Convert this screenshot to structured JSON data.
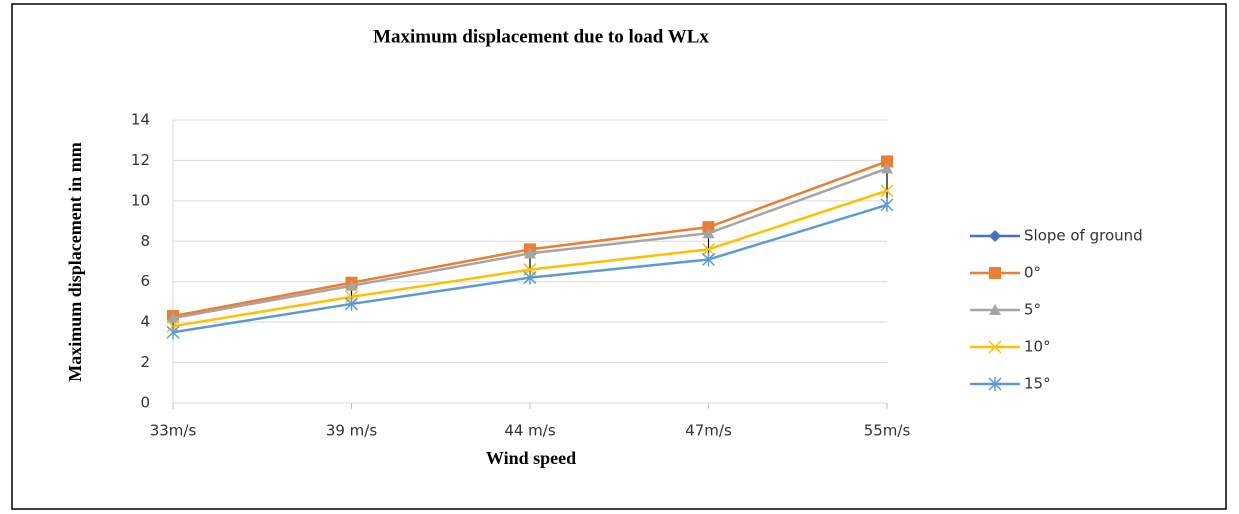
{
  "chart_data": {
    "type": "line",
    "title": "Maximum displacement due to load  WLx",
    "x_label": "Wind speed",
    "y_label": "Maximum displacement in mm",
    "categories": [
      "33m/s",
      "39 m/s",
      "44 m/s",
      "47m/s",
      "55m/s"
    ],
    "series": [
      {
        "name": "Slope of ground",
        "color": "#4472c4",
        "marker": "diamond",
        "values": [
          null,
          null,
          null,
          null,
          null
        ]
      },
      {
        "name": "0°",
        "color": "#ed7d31",
        "marker": "square",
        "values": [
          4.3,
          5.95,
          7.6,
          8.7,
          11.95
        ]
      },
      {
        "name": "5°",
        "color": "#a5a5a5",
        "marker": "triangle",
        "values": [
          4.2,
          5.8,
          7.4,
          8.4,
          11.6
        ]
      },
      {
        "name": "10°",
        "color": "#ffc000",
        "marker": "x",
        "values": [
          3.8,
          5.25,
          6.6,
          7.6,
          10.5
        ]
      },
      {
        "name": "15°",
        "color": "#5b9bd5",
        "marker": "star",
        "values": [
          3.5,
          4.9,
          6.2,
          7.1,
          9.8
        ]
      }
    ],
    "ylim": [
      0,
      14
    ],
    "yticks": [
      0,
      2,
      4,
      6,
      8,
      10,
      12,
      14
    ],
    "grid": true,
    "high_low_lines": true,
    "legend": "right"
  }
}
